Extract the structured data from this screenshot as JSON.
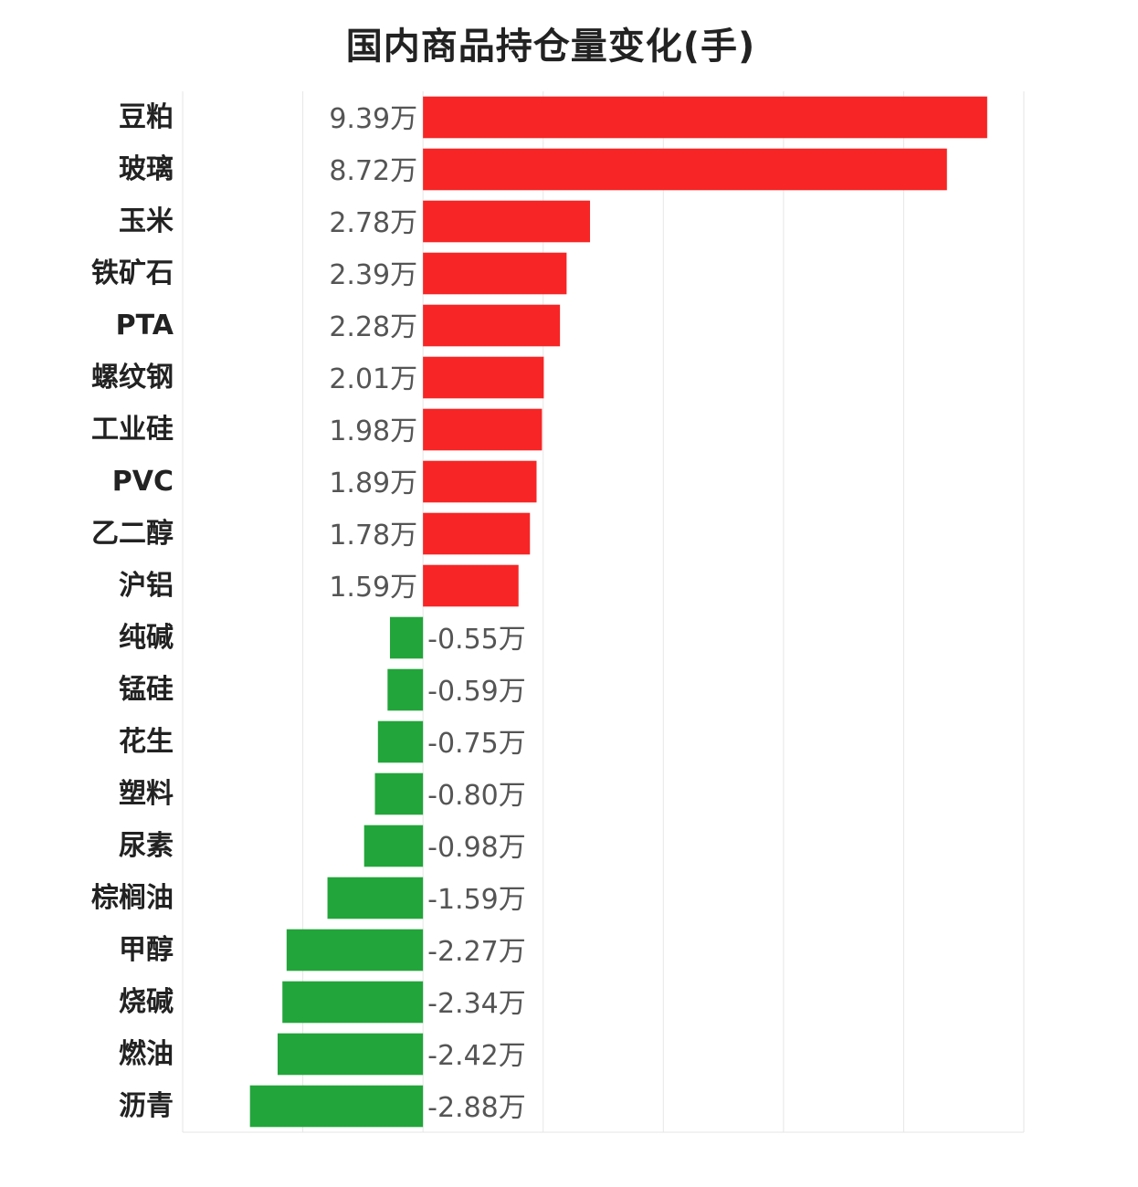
{
  "chart_data": {
    "type": "bar",
    "orientation": "horizontal",
    "title": "国内商品持仓量变化(手)",
    "value_suffix": "万",
    "categories": [
      "豆粕",
      "玻璃",
      "玉米",
      "铁矿石",
      "PTA",
      "螺纹钢",
      "工业硅",
      "PVC",
      "乙二醇",
      "沪铝",
      "纯碱",
      "锰硅",
      "花生",
      "塑料",
      "尿素",
      "棕榈油",
      "甲醇",
      "烧碱",
      "燃油",
      "沥青"
    ],
    "values": [
      9.39,
      8.72,
      2.78,
      2.39,
      2.28,
      2.01,
      1.98,
      1.89,
      1.78,
      1.59,
      -0.55,
      -0.59,
      -0.75,
      -0.8,
      -0.98,
      -1.59,
      -2.27,
      -2.34,
      -2.42,
      -2.88
    ],
    "value_labels": [
      "9.39万",
      "8.72万",
      "2.78万",
      "2.39万",
      "2.28万",
      "2.01万",
      "1.98万",
      "1.89万",
      "1.78万",
      "1.59万",
      "-0.55万",
      "-0.59万",
      "-0.75万",
      "-0.80万",
      "-0.98万",
      "-1.59万",
      "-2.27万",
      "-2.34万",
      "-2.42万",
      "-2.88万"
    ],
    "xlim": [
      -4,
      10
    ],
    "grid_step": 2,
    "grid": true,
    "colors": {
      "positive": "#f72525",
      "negative": "#22a53a",
      "grid": "#e6e6e6"
    }
  }
}
